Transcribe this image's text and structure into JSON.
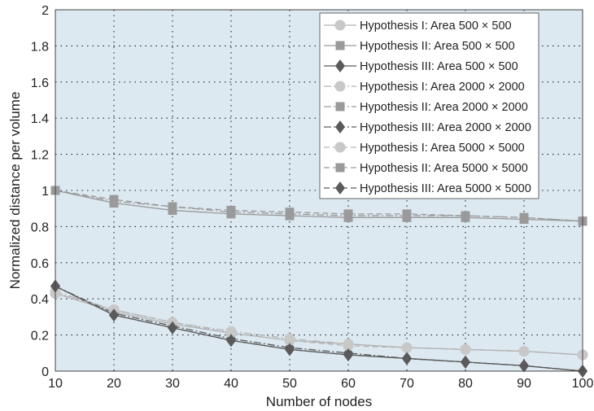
{
  "chart_data": {
    "type": "line",
    "title": "",
    "xlabel": "Number of nodes",
    "ylabel": "Normalized distance per volume",
    "xlim": [
      10,
      100
    ],
    "ylim": [
      0,
      2
    ],
    "x_ticks": [
      "10",
      "20",
      "30",
      "40",
      "50",
      "60",
      "70",
      "80",
      "90",
      "100"
    ],
    "y_ticks": [
      "0",
      "0.2",
      "0.4",
      "0.6",
      "0.8",
      "1",
      "1.2",
      "1.4",
      "1.6",
      "1.8",
      "2"
    ],
    "grid": true,
    "legend_position": "top-right",
    "x": [
      10,
      20,
      30,
      40,
      50,
      60,
      70,
      80,
      90,
      100
    ],
    "series": [
      {
        "name": "Hypothesis I: Area 500 × 500",
        "marker": "circle",
        "dash": "solid",
        "color": "#c8c8c8",
        "values": [
          0.43,
          0.33,
          0.26,
          0.21,
          0.17,
          0.15,
          0.13,
          0.12,
          0.11,
          0.09
        ]
      },
      {
        "name": "Hypothesis II: Area 500 × 500",
        "marker": "square",
        "dash": "solid",
        "color": "#9a9a9a",
        "values": [
          1.0,
          0.93,
          0.89,
          0.87,
          0.86,
          0.85,
          0.85,
          0.85,
          0.84,
          0.83
        ]
      },
      {
        "name": "Hypothesis III: Area 500 × 500",
        "marker": "diamond",
        "dash": "solid",
        "color": "#5a5a5a",
        "values": [
          0.47,
          0.31,
          0.24,
          0.17,
          0.12,
          0.09,
          0.07,
          0.05,
          0.03,
          0.0
        ]
      },
      {
        "name": "Hypothesis I: Area 2000 × 2000",
        "marker": "circle",
        "dash": "dashdot",
        "color": "#c8c8c8",
        "values": [
          0.44,
          0.34,
          0.27,
          0.22,
          0.18,
          0.15,
          0.13,
          0.12,
          0.11,
          0.09
        ]
      },
      {
        "name": "Hypothesis II: Area 2000 × 2000",
        "marker": "square",
        "dash": "dashdot",
        "color": "#9a9a9a",
        "values": [
          1.0,
          0.94,
          0.91,
          0.88,
          0.87,
          0.86,
          0.86,
          0.86,
          0.85,
          0.83
        ]
      },
      {
        "name": "Hypothesis III: Area 2000 × 2000",
        "marker": "diamond",
        "dash": "dashdot",
        "color": "#5a5a5a",
        "values": [
          0.47,
          0.32,
          0.25,
          0.18,
          0.13,
          0.1,
          0.07,
          0.05,
          0.03,
          0.0
        ]
      },
      {
        "name": "Hypothesis I: Area 5000 × 5000",
        "marker": "circle",
        "dash": "dashed",
        "color": "#c8c8c8",
        "values": [
          0.43,
          0.34,
          0.27,
          0.21,
          0.17,
          0.14,
          0.13,
          0.12,
          0.11,
          0.09
        ]
      },
      {
        "name": "Hypothesis II: Area 5000 × 5000",
        "marker": "square",
        "dash": "dashed",
        "color": "#9a9a9a",
        "values": [
          1.0,
          0.95,
          0.91,
          0.89,
          0.88,
          0.87,
          0.87,
          0.86,
          0.85,
          0.83
        ]
      },
      {
        "name": "Hypothesis III: Area 5000 × 5000",
        "marker": "diamond",
        "dash": "dashed",
        "color": "#5a5a5a",
        "values": [
          0.47,
          0.31,
          0.24,
          0.17,
          0.12,
          0.09,
          0.07,
          0.05,
          0.03,
          0.0
        ]
      }
    ],
    "colors": {
      "plot_background": "#dde9f1",
      "grid": "#222222",
      "frame": "#444444"
    }
  }
}
